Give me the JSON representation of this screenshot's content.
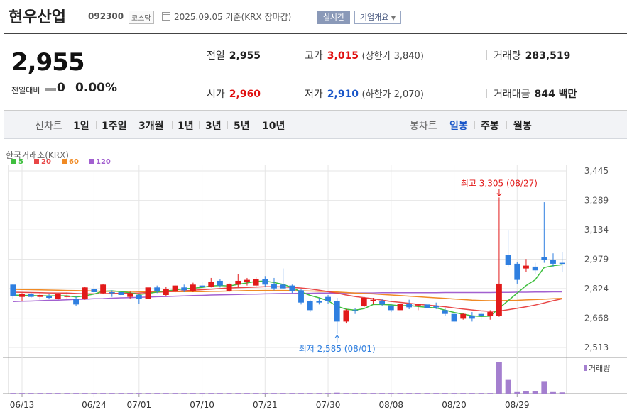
{
  "header": {
    "company": "현우산업",
    "code": "092300",
    "market": "코스닥",
    "date_text": "2025.09.05 기준(KRX 장마감)",
    "realtime_label": "실시간",
    "overview_label": "기업개요"
  },
  "quote": {
    "price": "2,955",
    "change_label": "전일대비",
    "change_value": "0",
    "change_pct": "0.00%",
    "prev_close_label": "전일",
    "prev_close": "2,955",
    "high_label": "고가",
    "high": "3,015",
    "upper_limit_text": "(상한가 3,840)",
    "volume_label": "거래량",
    "volume": "283,519",
    "open_label": "시가",
    "open": "2,960",
    "low_label": "저가",
    "low": "2,910",
    "lower_limit_text": "(하한가 2,070)",
    "trade_value_label": "거래대금",
    "trade_value": "844 백만"
  },
  "tabs": {
    "line_chart": "선차트",
    "periods": [
      "1일",
      "1주일",
      "3개월",
      "1년",
      "3년",
      "5년",
      "10년"
    ],
    "candle_chart": "봉차트",
    "candle_periods": [
      "일봉",
      "주봉",
      "월봉"
    ]
  },
  "chart_meta": {
    "exchange": "한국거래소(KRX)",
    "ma_legend": [
      {
        "label": "5",
        "color": "#3fbf3f"
      },
      {
        "label": "20",
        "color": "#e84646"
      },
      {
        "label": "60",
        "color": "#f08a24"
      },
      {
        "label": "120",
        "color": "#a260d0"
      }
    ],
    "high_annotation": "최고 3,305 (08/27)",
    "low_annotation": "최저 2,585 (08/01)",
    "volume_label": "거래량",
    "up_color": "#e21a1a",
    "down_color": "#2f7fe0"
  },
  "chart_data": {
    "type": "candlestick",
    "y_ticks": [
      3445,
      3289,
      3134,
      2979,
      2824,
      2668,
      2513
    ],
    "y_tick_labels": [
      "3,445",
      "3,289",
      "3,134",
      "2,979",
      "2,824",
      "2,668",
      "2,513"
    ],
    "ylim": [
      2490,
      3460
    ],
    "x_ticks": [
      "06/13",
      "06/24",
      "07/01",
      "07/10",
      "07/21",
      "07/30",
      "08/08",
      "08/20",
      "08/29"
    ],
    "x_tick_index": [
      1,
      9,
      14,
      21,
      28,
      35,
      42,
      49,
      56
    ],
    "candles": [
      {
        "o": 2845,
        "h": 2850,
        "l": 2770,
        "c": 2785
      },
      {
        "o": 2780,
        "h": 2800,
        "l": 2760,
        "c": 2795
      },
      {
        "o": 2795,
        "h": 2805,
        "l": 2775,
        "c": 2780
      },
      {
        "o": 2780,
        "h": 2800,
        "l": 2765,
        "c": 2790
      },
      {
        "o": 2785,
        "h": 2795,
        "l": 2770,
        "c": 2775
      },
      {
        "o": 2770,
        "h": 2800,
        "l": 2765,
        "c": 2795
      },
      {
        "o": 2780,
        "h": 2805,
        "l": 2770,
        "c": 2785
      },
      {
        "o": 2770,
        "h": 2785,
        "l": 2730,
        "c": 2740
      },
      {
        "o": 2770,
        "h": 2835,
        "l": 2765,
        "c": 2830
      },
      {
        "o": 2820,
        "h": 2850,
        "l": 2800,
        "c": 2805
      },
      {
        "o": 2800,
        "h": 2850,
        "l": 2795,
        "c": 2845
      },
      {
        "o": 2805,
        "h": 2815,
        "l": 2780,
        "c": 2800
      },
      {
        "o": 2805,
        "h": 2815,
        "l": 2775,
        "c": 2790
      },
      {
        "o": 2780,
        "h": 2810,
        "l": 2770,
        "c": 2800
      },
      {
        "o": 2790,
        "h": 2795,
        "l": 2745,
        "c": 2770
      },
      {
        "o": 2770,
        "h": 2835,
        "l": 2765,
        "c": 2830
      },
      {
        "o": 2830,
        "h": 2840,
        "l": 2800,
        "c": 2810
      },
      {
        "o": 2790,
        "h": 2835,
        "l": 2785,
        "c": 2820
      },
      {
        "o": 2810,
        "h": 2850,
        "l": 2800,
        "c": 2840
      },
      {
        "o": 2830,
        "h": 2845,
        "l": 2805,
        "c": 2815
      },
      {
        "o": 2810,
        "h": 2855,
        "l": 2805,
        "c": 2845
      },
      {
        "o": 2840,
        "h": 2860,
        "l": 2825,
        "c": 2835
      },
      {
        "o": 2835,
        "h": 2880,
        "l": 2830,
        "c": 2860
      },
      {
        "o": 2865,
        "h": 2875,
        "l": 2830,
        "c": 2840
      },
      {
        "o": 2810,
        "h": 2855,
        "l": 2805,
        "c": 2850
      },
      {
        "o": 2845,
        "h": 2900,
        "l": 2830,
        "c": 2865
      },
      {
        "o": 2860,
        "h": 2880,
        "l": 2840,
        "c": 2870
      },
      {
        "o": 2840,
        "h": 2885,
        "l": 2835,
        "c": 2875
      },
      {
        "o": 2875,
        "h": 2890,
        "l": 2835,
        "c": 2845
      },
      {
        "o": 2850,
        "h": 2880,
        "l": 2815,
        "c": 2825
      },
      {
        "o": 2845,
        "h": 2930,
        "l": 2820,
        "c": 2825
      },
      {
        "o": 2840,
        "h": 2845,
        "l": 2800,
        "c": 2810
      },
      {
        "o": 2815,
        "h": 2820,
        "l": 2740,
        "c": 2750
      },
      {
        "o": 2760,
        "h": 2765,
        "l": 2700,
        "c": 2710
      },
      {
        "o": 2760,
        "h": 2775,
        "l": 2740,
        "c": 2750
      },
      {
        "o": 2780,
        "h": 2790,
        "l": 2745,
        "c": 2760
      },
      {
        "o": 2760,
        "h": 2775,
        "l": 2585,
        "c": 2650
      },
      {
        "o": 2650,
        "h": 2715,
        "l": 2640,
        "c": 2710
      },
      {
        "o": 2710,
        "h": 2720,
        "l": 2690,
        "c": 2705
      },
      {
        "o": 2730,
        "h": 2780,
        "l": 2725,
        "c": 2775
      },
      {
        "o": 2760,
        "h": 2775,
        "l": 2740,
        "c": 2765
      },
      {
        "o": 2760,
        "h": 2770,
        "l": 2730,
        "c": 2740
      },
      {
        "o": 2735,
        "h": 2745,
        "l": 2700,
        "c": 2710
      },
      {
        "o": 2710,
        "h": 2760,
        "l": 2705,
        "c": 2745
      },
      {
        "o": 2745,
        "h": 2765,
        "l": 2715,
        "c": 2725
      },
      {
        "o": 2735,
        "h": 2745,
        "l": 2710,
        "c": 2740
      },
      {
        "o": 2740,
        "h": 2750,
        "l": 2710,
        "c": 2720
      },
      {
        "o": 2730,
        "h": 2750,
        "l": 2715,
        "c": 2725
      },
      {
        "o": 2710,
        "h": 2720,
        "l": 2680,
        "c": 2690
      },
      {
        "o": 2690,
        "h": 2700,
        "l": 2640,
        "c": 2650
      },
      {
        "o": 2665,
        "h": 2695,
        "l": 2660,
        "c": 2690
      },
      {
        "o": 2680,
        "h": 2700,
        "l": 2650,
        "c": 2665
      },
      {
        "o": 2690,
        "h": 2700,
        "l": 2660,
        "c": 2680
      },
      {
        "o": 2680,
        "h": 2710,
        "l": 2660,
        "c": 2700
      },
      {
        "o": 2680,
        "h": 3305,
        "l": 2675,
        "c": 2850
      },
      {
        "o": 3000,
        "h": 3130,
        "l": 2940,
        "c": 2950
      },
      {
        "o": 2955,
        "h": 2965,
        "l": 2850,
        "c": 2870
      },
      {
        "o": 2930,
        "h": 2980,
        "l": 2910,
        "c": 2945
      },
      {
        "o": 2940,
        "h": 2960,
        "l": 2900,
        "c": 2920
      },
      {
        "o": 2990,
        "h": 3280,
        "l": 2960,
        "c": 2975
      },
      {
        "o": 2975,
        "h": 3010,
        "l": 2940,
        "c": 2955
      },
      {
        "o": 2960,
        "h": 3015,
        "l": 2910,
        "c": 2955
      }
    ],
    "ma5": [
      2790,
      2788,
      2787,
      2786,
      2785,
      2786,
      2786,
      2780,
      2786,
      2795,
      2810,
      2812,
      2808,
      2802,
      2793,
      2798,
      2806,
      2812,
      2816,
      2823,
      2826,
      2830,
      2838,
      2840,
      2838,
      2846,
      2854,
      2862,
      2864,
      2856,
      2846,
      2830,
      2806,
      2788,
      2775,
      2760,
      2730,
      2715,
      2710,
      2718,
      2740,
      2740,
      2738,
      2733,
      2735,
      2729,
      2725,
      2722,
      2710,
      2698,
      2689,
      2680,
      2677,
      2679,
      2720,
      2760,
      2800,
      2840,
      2870,
      2935,
      2945,
      2950
    ],
    "ma20": [
      2805,
      2804,
      2803,
      2802,
      2801,
      2800,
      2800,
      2798,
      2796,
      2796,
      2797,
      2798,
      2799,
      2800,
      2801,
      2803,
      2805,
      2807,
      2809,
      2812,
      2815,
      2818,
      2821,
      2824,
      2827,
      2829,
      2830,
      2832,
      2834,
      2834,
      2833,
      2830,
      2827,
      2822,
      2815,
      2808,
      2800,
      2790,
      2782,
      2776,
      2770,
      2763,
      2756,
      2751,
      2746,
      2741,
      2737,
      2733,
      2728,
      2722,
      2716,
      2711,
      2706,
      2704,
      2705,
      2712,
      2720,
      2728,
      2737,
      2748,
      2760,
      2770
    ],
    "ma60": [
      2820,
      2819,
      2818,
      2817,
      2816,
      2815,
      2814,
      2813,
      2812,
      2811,
      2810,
      2810,
      2809,
      2809,
      2808,
      2808,
      2808,
      2808,
      2808,
      2808,
      2808,
      2808,
      2809,
      2810,
      2811,
      2812,
      2813,
      2813,
      2814,
      2814,
      2814,
      2813,
      2812,
      2811,
      2810,
      2808,
      2806,
      2803,
      2800,
      2798,
      2796,
      2793,
      2790,
      2787,
      2784,
      2781,
      2778,
      2775,
      2772,
      2769,
      2766,
      2763,
      2761,
      2760,
      2760,
      2761,
      2762,
      2764,
      2766,
      2768,
      2770,
      2772
    ],
    "ma120": [
      2755,
      2757,
      2758,
      2760,
      2762,
      2763,
      2765,
      2767,
      2768,
      2770,
      2771,
      2773,
      2775,
      2776,
      2778,
      2779,
      2781,
      2782,
      2784,
      2785,
      2787,
      2788,
      2790,
      2791,
      2792,
      2793,
      2794,
      2795,
      2796,
      2797,
      2798,
      2798,
      2799,
      2799,
      2800,
      2800,
      2800,
      2801,
      2801,
      2801,
      2801,
      2802,
      2802,
      2802,
      2802,
      2802,
      2802,
      2802,
      2803,
      2803,
      2803,
      2803,
      2803,
      2803,
      2804,
      2804,
      2805,
      2805,
      2806,
      2806,
      2807,
      2807
    ],
    "volume": [
      2,
      2,
      2,
      2,
      2,
      2,
      2,
      2,
      2,
      2,
      2,
      2,
      2,
      2,
      2,
      2,
      2,
      2,
      2,
      2,
      2,
      2,
      2,
      2,
      2,
      2,
      2,
      2,
      2,
      2,
      2,
      2,
      2,
      2,
      2,
      2,
      3,
      2,
      2,
      2,
      2,
      2,
      2,
      2,
      2,
      2,
      2,
      2,
      2,
      2,
      2,
      2,
      2,
      2,
      100,
      44,
      5,
      8,
      8,
      40,
      5,
      4
    ]
  }
}
